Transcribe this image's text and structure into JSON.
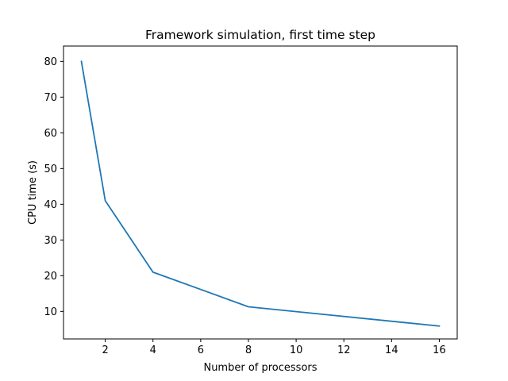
{
  "chart_data": {
    "type": "line",
    "title": "Framework simulation, first time step",
    "xlabel": "Number of processors",
    "ylabel": "CPU time (s)",
    "xlim": [
      0.25,
      16.75
    ],
    "ylim": [
      2.3,
      84.3
    ],
    "xticks": [
      2,
      4,
      6,
      8,
      10,
      12,
      14,
      16
    ],
    "yticks": [
      10,
      20,
      30,
      40,
      50,
      60,
      70,
      80
    ],
    "grid": false,
    "legend": "none",
    "series": [
      {
        "color": "#1f77b4",
        "x": [
          1,
          2,
          4,
          8,
          16
        ],
        "y": [
          80.0,
          41.0,
          21.0,
          11.3,
          5.9
        ]
      }
    ]
  }
}
